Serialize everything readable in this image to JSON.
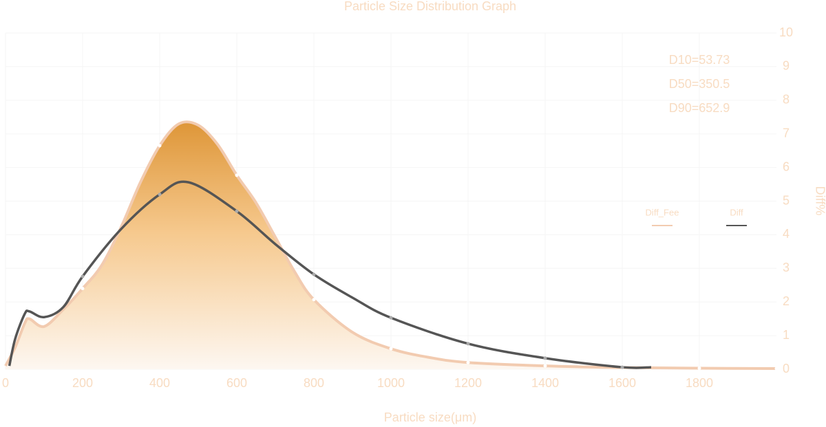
{
  "chart_data": {
    "type": "line",
    "title": "Particle Size Distribution Graph",
    "x_label": "Particle size(μm)",
    "y_label": "Diff%",
    "annotations": [
      "D10=53.73",
      "D50=350.5",
      "D90=652.9"
    ],
    "xlim": [
      0,
      2000
    ],
    "xticks": [
      0,
      200,
      400,
      600,
      800,
      1000,
      1200,
      1400,
      1600,
      1800
    ],
    "ylim": [
      0,
      10
    ],
    "yticks": [
      0,
      1,
      2,
      3,
      4,
      5,
      6,
      7,
      8,
      9,
      10
    ],
    "grid": true,
    "series": [
      {
        "name": "Diff_Fee",
        "color": "#f2cbb0",
        "fill": true,
        "x": [
          0,
          25,
          50,
          62,
          100,
          150,
          200,
          250,
          300,
          350,
          400,
          450,
          500,
          550,
          600,
          650,
          700,
          750,
          800,
          900,
          1000,
          1100,
          1200,
          1400,
          1600,
          1800,
          2000
        ],
        "values": [
          0.1,
          0.65,
          1.37,
          1.5,
          1.27,
          1.78,
          2.4,
          3.1,
          4.23,
          5.56,
          6.65,
          7.3,
          7.26,
          6.69,
          5.77,
          4.95,
          3.93,
          2.9,
          2.07,
          1.1,
          0.61,
          0.35,
          0.2,
          0.1,
          0.05,
          0.03,
          0.02
        ]
      },
      {
        "name": "Diff",
        "color": "#555555",
        "fill": false,
        "x": [
          10,
          25,
          50,
          62,
          100,
          150,
          200,
          300,
          400,
          475,
          600,
          700,
          800,
          900,
          1000,
          1200,
          1400,
          1600,
          1675
        ],
        "values": [
          0.1,
          0.9,
          1.65,
          1.72,
          1.55,
          1.85,
          2.76,
          4.17,
          5.2,
          5.56,
          4.7,
          3.72,
          2.82,
          2.13,
          1.53,
          0.76,
          0.33,
          0.06,
          0.06
        ]
      }
    ]
  }
}
